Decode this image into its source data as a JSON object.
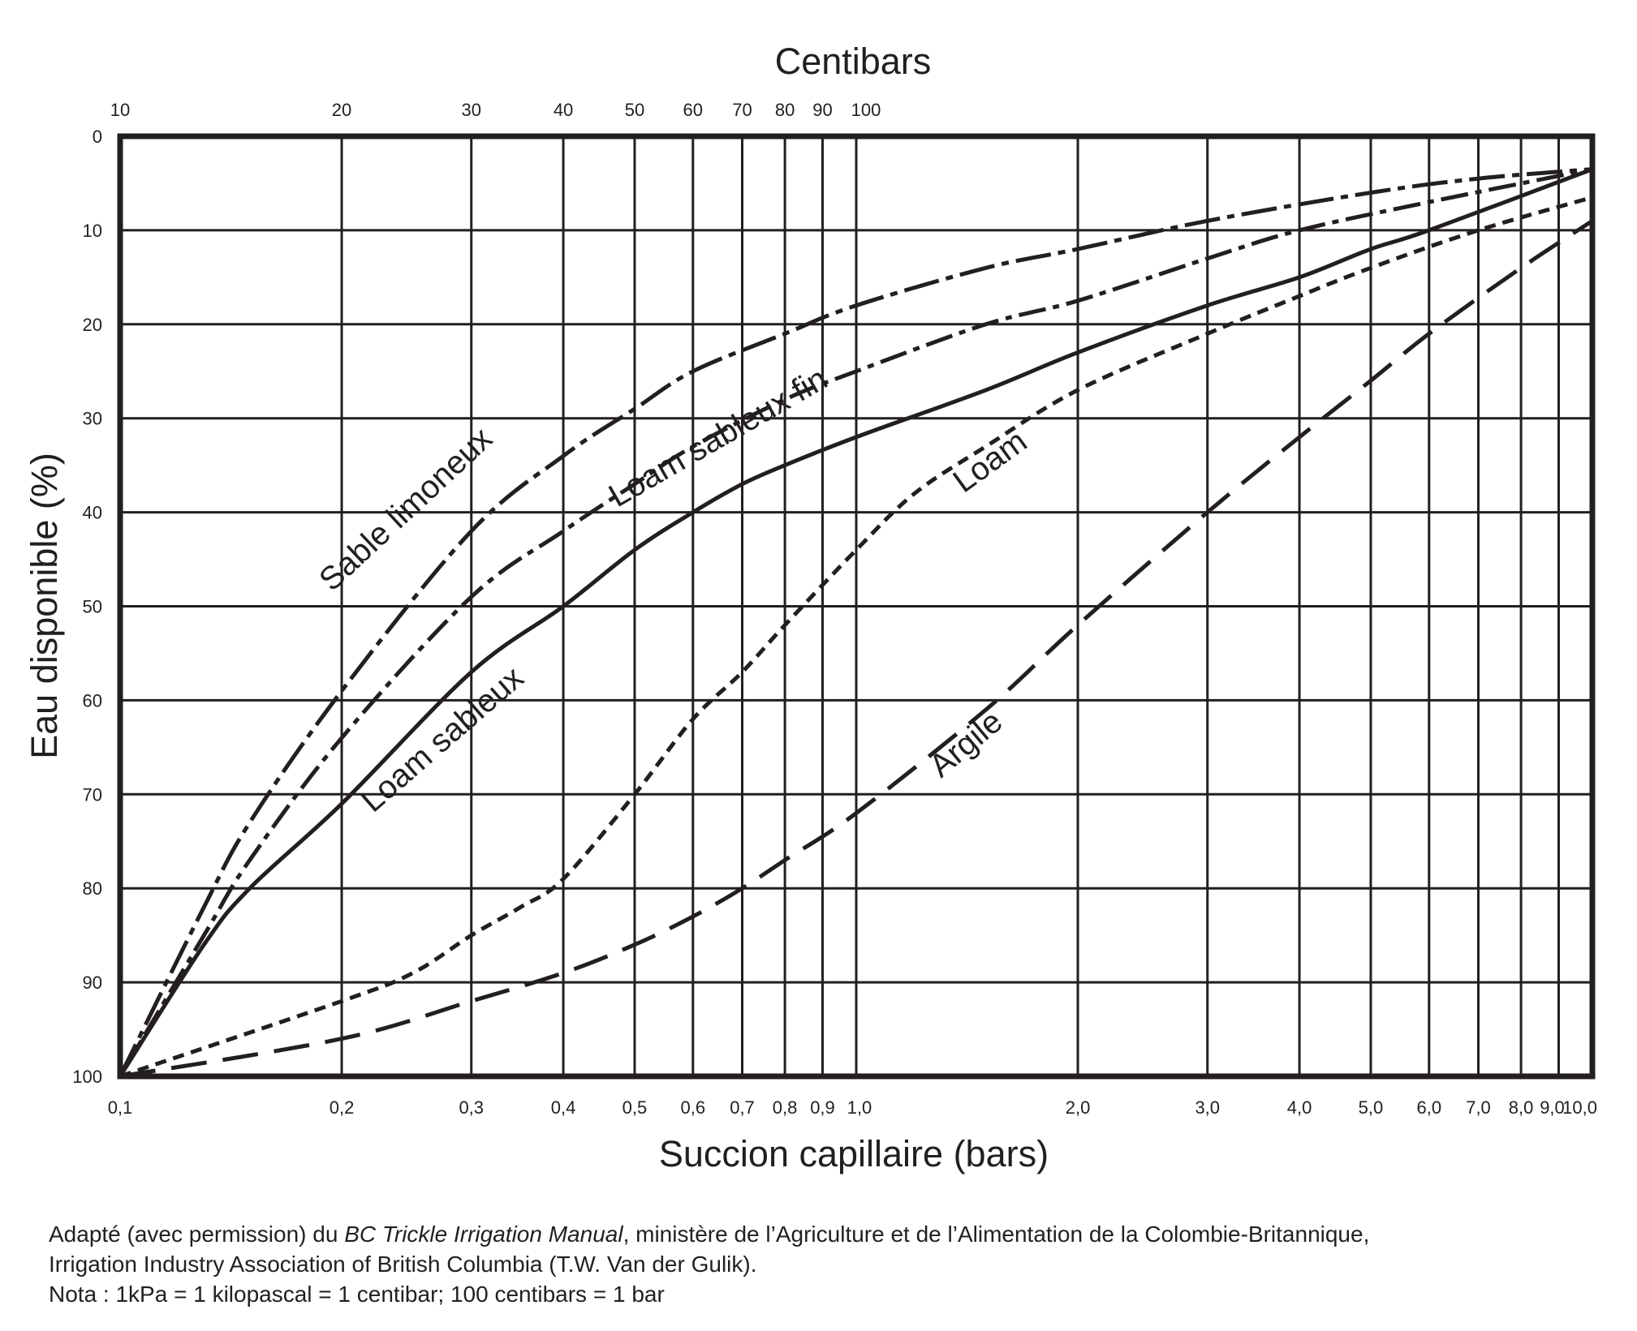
{
  "chart_data": {
    "type": "line",
    "title": "Centibars",
    "xlabel": "Succion capillaire (bars)",
    "ylabel": "Eau disponible (%)",
    "x_scale": "log",
    "xlim": [
      0.1,
      10.0
    ],
    "ylim": [
      100,
      0
    ],
    "y_inverted": true,
    "grid": true,
    "x_ticks": [
      {
        "v": 0.1,
        "label": "0,1"
      },
      {
        "v": 0.2,
        "label": "0,2"
      },
      {
        "v": 0.3,
        "label": "0,3"
      },
      {
        "v": 0.4,
        "label": "0,4"
      },
      {
        "v": 0.5,
        "label": "0,5"
      },
      {
        "v": 0.6,
        "label": "0,6"
      },
      {
        "v": 0.7,
        "label": "0,7"
      },
      {
        "v": 0.8,
        "label": "0,8"
      },
      {
        "v": 0.9,
        "label": "0,9"
      },
      {
        "v": 1.0,
        "label": "1,0"
      },
      {
        "v": 2.0,
        "label": "2,0"
      },
      {
        "v": 3.0,
        "label": "3,0"
      },
      {
        "v": 4.0,
        "label": "4,0"
      },
      {
        "v": 5.0,
        "label": "5,0"
      },
      {
        "v": 6.0,
        "label": "6,0"
      },
      {
        "v": 7.0,
        "label": "7,0"
      },
      {
        "v": 8.0,
        "label": "8,0"
      },
      {
        "v": 9.0,
        "label": "9,0"
      },
      {
        "v": 10.0,
        "label": "10,0"
      }
    ],
    "top_ticks": [
      {
        "v": 0.1,
        "label": "10"
      },
      {
        "v": 0.2,
        "label": "20"
      },
      {
        "v": 0.3,
        "label": "30"
      },
      {
        "v": 0.4,
        "label": "40"
      },
      {
        "v": 0.5,
        "label": "50"
      },
      {
        "v": 0.6,
        "label": "60"
      },
      {
        "v": 0.7,
        "label": "70"
      },
      {
        "v": 0.8,
        "label": "80"
      },
      {
        "v": 0.9,
        "label": "90"
      },
      {
        "v": 1.0,
        "label": "100"
      }
    ],
    "y_ticks": [
      0,
      10,
      20,
      30,
      40,
      50,
      60,
      70,
      80,
      90,
      100
    ],
    "series": [
      {
        "name": "Sable limoneux",
        "style": "long-dash-dot",
        "x": [
          0.1,
          0.13,
          0.15,
          0.2,
          0.3,
          0.4,
          0.5,
          0.6,
          0.8,
          1.0,
          1.5,
          2.0,
          3.0,
          5.0,
          7.0,
          10.0
        ],
        "y": [
          100,
          82,
          73,
          59,
          42,
          34,
          29,
          25,
          21,
          18,
          14,
          12,
          9,
          6,
          4.5,
          3.5
        ]
      },
      {
        "name": "Loam sableux fin",
        "style": "dash-dot",
        "x": [
          0.1,
          0.13,
          0.15,
          0.2,
          0.3,
          0.4,
          0.5,
          0.6,
          0.8,
          1.0,
          1.5,
          2.0,
          3.0,
          4.0,
          6.0,
          10.0
        ],
        "y": [
          100,
          85,
          77,
          64,
          49,
          42,
          37,
          33,
          28,
          25,
          20,
          17.5,
          13,
          10,
          7,
          3.5
        ]
      },
      {
        "name": "Loam sableux",
        "style": "solid",
        "x": [
          0.1,
          0.13,
          0.15,
          0.2,
          0.3,
          0.4,
          0.5,
          0.6,
          0.7,
          0.8,
          1.0,
          1.5,
          2.0,
          3.0,
          4.0,
          5.0,
          6.0,
          10.0
        ],
        "y": [
          100,
          86,
          80,
          71,
          57,
          50,
          44,
          40,
          37,
          35,
          32,
          27,
          23,
          18,
          15,
          12,
          10,
          3.5
        ]
      },
      {
        "name": "Loam",
        "style": "short-dash",
        "x": [
          0.1,
          0.2,
          0.25,
          0.3,
          0.35,
          0.4,
          0.5,
          0.6,
          0.7,
          0.8,
          1.0,
          1.2,
          1.5,
          2.0,
          3.0,
          4.0,
          5.0,
          7.0,
          10.0
        ],
        "y": [
          100,
          92,
          89,
          85,
          82,
          79,
          70,
          62,
          57,
          52,
          44,
          38,
          33,
          27,
          21,
          17,
          14,
          10,
          6.5
        ]
      },
      {
        "name": "Argile",
        "style": "long-dash",
        "x": [
          0.1,
          0.2,
          0.3,
          0.4,
          0.5,
          0.6,
          0.7,
          0.8,
          1.0,
          1.5,
          2.0,
          3.0,
          4.0,
          5.0,
          6.0,
          8.0,
          10.0
        ],
        "y": [
          100,
          96,
          92,
          89,
          86,
          83,
          80,
          77,
          72,
          61,
          52,
          40,
          32,
          26,
          21,
          14,
          9
        ]
      }
    ],
    "annotations": [
      {
        "text": "Sable limoneux",
        "series": "Sable limoneux"
      },
      {
        "text": "Loam sableux fin",
        "series": "Loam sableux fin"
      },
      {
        "text": "Loam sableux",
        "series": "Loam sableux"
      },
      {
        "text": "Loam",
        "series": "Loam"
      },
      {
        "text": "Argile",
        "series": "Argile"
      }
    ]
  },
  "caption": {
    "line1_prefix": "Adapté (avec permission) du ",
    "line1_italic": "BC Trickle Irrigation Manual",
    "line1_suffix": ", ministère de l’Agriculture et de l’Alimentation de la Colombie-Britannique,",
    "line2": "Irrigation Industry Association of British Columbia (T.W. Van der Gulik).",
    "line3": "Nota : 1kPa = 1 kilopascal = 1 centibar; 100 centibars = 1 bar"
  },
  "colors": {
    "ink": "#231f20",
    "background": "#ffffff"
  }
}
